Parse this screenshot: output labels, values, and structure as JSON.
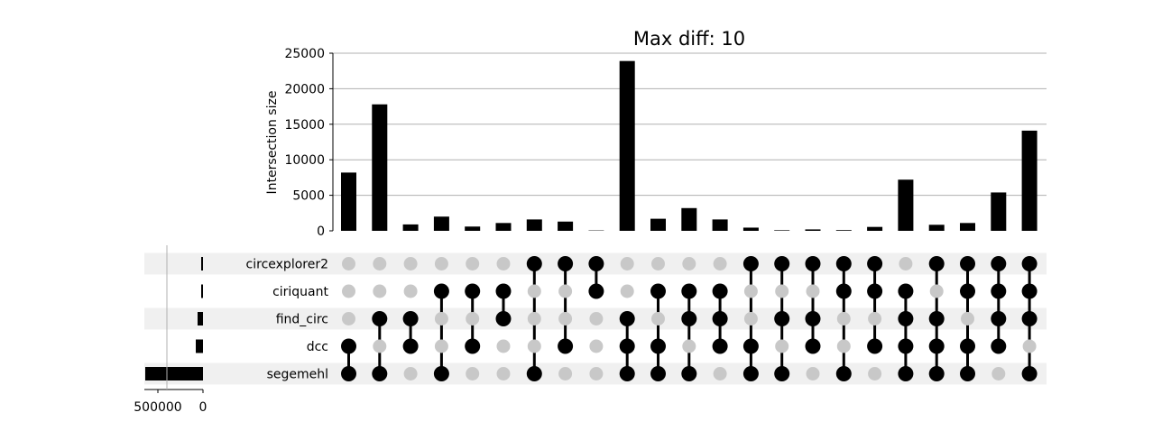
{
  "chart_data": {
    "type": "bar",
    "title": "Max diff: 10",
    "ylabel": "Intersection size",
    "ylim": [
      0,
      25000
    ],
    "yticks": [
      0,
      5000,
      10000,
      15000,
      20000,
      25000
    ],
    "grid": true,
    "sets": [
      "circexplorer2",
      "ciriquant",
      "find_circ",
      "dcc",
      "segemehl"
    ],
    "set_sizes_ticks": [
      "500000",
      "0"
    ],
    "set_sizes_range": [
      0,
      650000
    ],
    "set_sizes": [
      12000,
      18000,
      60000,
      80000,
      640000
    ],
    "intersections": [
      {
        "members": [
          3,
          4
        ],
        "value": 8200
      },
      {
        "members": [
          2,
          4
        ],
        "value": 17800
      },
      {
        "members": [
          2,
          3
        ],
        "value": 900
      },
      {
        "members": [
          1,
          4
        ],
        "value": 2000
      },
      {
        "members": [
          1,
          3
        ],
        "value": 600
      },
      {
        "members": [
          1,
          2
        ],
        "value": 1100
      },
      {
        "members": [
          0,
          4
        ],
        "value": 1600
      },
      {
        "members": [
          0,
          3
        ],
        "value": 1300
      },
      {
        "members": [
          0,
          1
        ],
        "value": 50
      },
      {
        "members": [
          2,
          3,
          4
        ],
        "value": 23900
      },
      {
        "members": [
          1,
          3,
          4
        ],
        "value": 1700
      },
      {
        "members": [
          1,
          2,
          4
        ],
        "value": 3200
      },
      {
        "members": [
          1,
          2,
          3
        ],
        "value": 1600
      },
      {
        "members": [
          0,
          3,
          4
        ],
        "value": 450
      },
      {
        "members": [
          0,
          2,
          4
        ],
        "value": 80
      },
      {
        "members": [
          0,
          2,
          3
        ],
        "value": 200
      },
      {
        "members": [
          0,
          1,
          4
        ],
        "value": 100
      },
      {
        "members": [
          0,
          1,
          3
        ],
        "value": 550
      },
      {
        "members": [
          1,
          2,
          3,
          4
        ],
        "value": 7200
      },
      {
        "members": [
          0,
          2,
          3,
          4
        ],
        "value": 850
      },
      {
        "members": [
          0,
          1,
          3,
          4
        ],
        "value": 1100
      },
      {
        "members": [
          0,
          1,
          2,
          3
        ],
        "value": 5400
      },
      {
        "members": [
          0,
          1,
          2,
          4
        ],
        "value": 14100
      }
    ],
    "colors": {
      "bar": "#000000",
      "dot_active": "#000000",
      "dot_inactive": "#c8c8c8",
      "stripe": "#f0f0f0",
      "grid": "#b0b0b0"
    }
  }
}
